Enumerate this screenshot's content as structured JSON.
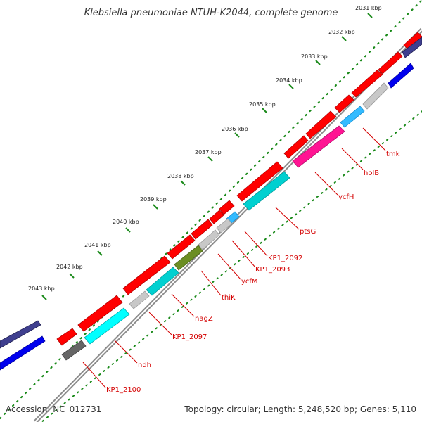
{
  "title": "Klebsiella pneumoniae NTUH-K2044, complete genome",
  "accession": "Accession: NC_012731",
  "summary": "Topology: circular; Length: 5,248,520 bp; Genes: 5,110",
  "colors": {
    "backbone": "#8c8c8c",
    "cds_forward": "#ff0000",
    "tick_dots": "#1a8a1a",
    "gene_label": "#d40000",
    "blast_navy": "#3f3f8f",
    "blast_blue": "#0000ee",
    "hit_cyan": "#00d0d0",
    "hit_lightcyan": "#00ffff",
    "hit_gray": "#c8c8c8",
    "hit_darkgray": "#666666",
    "hit_olive": "#6b8e23",
    "hit_pink": "#ff1493",
    "hit_skyblue": "#33bbff"
  },
  "kbp_labels": [
    "2031 kbp",
    "2032 kbp",
    "2033 kbp",
    "2034 kbp",
    "2035 kbp",
    "2036 kbp",
    "2037 kbp",
    "2038 kbp",
    "2039 kbp",
    "2040 kbp",
    "2041 kbp",
    "2042 kbp",
    "2043 kbp"
  ],
  "genes": [
    "tmk",
    "holB",
    "ycfH",
    "ptsG",
    "KP1_2092",
    "KP1_2093",
    "ycfM",
    "thiK",
    "nagZ",
    "KP1_2097",
    "ndh",
    "KP1_2100"
  ]
}
